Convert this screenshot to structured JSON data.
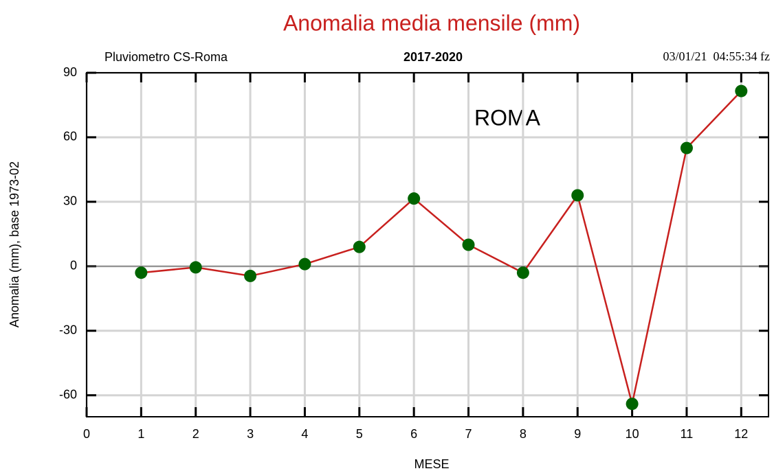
{
  "chart_data": {
    "type": "line",
    "title": "Anomalia media mensile (mm)",
    "subtitle_left": "Pluviometro CS-Roma",
    "subtitle_center": "2017-2020",
    "subtitle_right": "03/01/21  04:55:34 fz",
    "annotation": "ROMA",
    "x_label": "MESE",
    "y_label": "Anomalia (mm), base 1973-02",
    "x": [
      1,
      2,
      3,
      4,
      5,
      6,
      7,
      8,
      9,
      10,
      11,
      12
    ],
    "series": [
      {
        "color": "#c8201e",
        "marker_color": "#006400",
        "values": [
          -3,
          -0.5,
          -4.5,
          1,
          9,
          31.5,
          10,
          -3,
          33,
          -64,
          55,
          81.5
        ]
      }
    ],
    "xlim": [
      0,
      12.5
    ],
    "xticks": [
      0,
      1,
      2,
      3,
      4,
      5,
      6,
      7,
      8,
      9,
      10,
      11,
      12
    ],
    "ylim": [
      -70,
      90
    ],
    "yticks": [
      -60,
      -30,
      0,
      30,
      60,
      90
    ],
    "grid": true
  }
}
